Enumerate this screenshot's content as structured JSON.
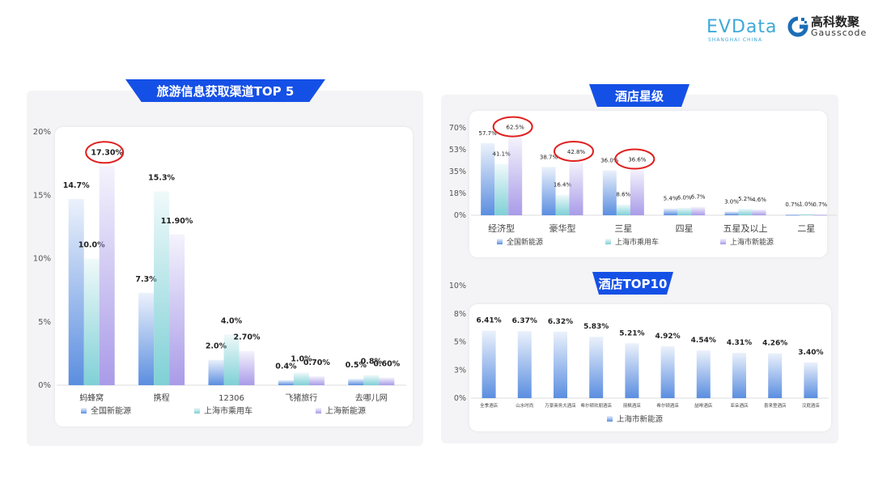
{
  "logos": {
    "evdata": "EVData",
    "evdata_sub": "SHANGHAI CHINA",
    "gauss_cn": "高科数聚",
    "gauss_en": "Gausscode"
  },
  "colors": {
    "banner": "#1550e6",
    "series1": "#5b8ee0",
    "series2": "#7fd0d6",
    "series3": "#a99be8",
    "annotation": "#e02020"
  },
  "chart_data": [
    {
      "type": "bar",
      "title": "旅游信息获取渠道TOP 5",
      "categories": [
        "蚂蜂窝",
        "携程",
        "12306",
        "飞猪旅行",
        "去哪儿网"
      ],
      "series": [
        {
          "name": "全国新能源",
          "values": [
            14.7,
            7.3,
            2.0,
            0.4,
            0.5
          ],
          "labels": [
            "14.7%",
            "7.3%",
            "2.0%",
            "0.4%",
            "0.5%"
          ]
        },
        {
          "name": "上海市乘用车",
          "values": [
            10.0,
            15.3,
            4.0,
            1.0,
            0.8
          ],
          "labels": [
            "10.0%",
            "15.3%",
            "4.0%",
            "1.0%",
            "0.8%"
          ]
        },
        {
          "name": "上海新能源",
          "values": [
            17.3,
            11.9,
            2.7,
            0.7,
            0.6
          ],
          "labels": [
            "17.30%",
            "11.90%",
            "2.70%",
            "0.70%",
            "0.60%"
          ]
        }
      ],
      "yticks": [
        "0%",
        "5%",
        "10%",
        "15%",
        "20%"
      ],
      "ylim": [
        0,
        20
      ],
      "legend": "bottom",
      "highlighted": [
        {
          "series": 2,
          "category": 0
        }
      ]
    },
    {
      "type": "bar",
      "title": "酒店星级",
      "categories": [
        "经济型",
        "豪华型",
        "三星",
        "四星",
        "五星及以上",
        "二星"
      ],
      "series": [
        {
          "name": "全国新能源",
          "values": [
            57.7,
            38.7,
            36.0,
            5.4,
            3.0,
            0.7
          ],
          "labels": [
            "57.7%",
            "38.7%",
            "36.0%",
            "5.4%",
            "3.0%",
            "0.7%"
          ]
        },
        {
          "name": "上海市乘用车",
          "values": [
            41.1,
            16.4,
            8.6,
            6.0,
            5.2,
            1.0
          ],
          "labels": [
            "41.1%",
            "16.4%",
            "8.6%",
            "6.0%",
            "5.2%",
            "1.0%"
          ]
        },
        {
          "name": "上海市新能源",
          "values": [
            62.5,
            42.8,
            36.6,
            6.7,
            4.6,
            0.7
          ],
          "labels": [
            "62.5%",
            "42.8%",
            "36.6%",
            "6.7%",
            "4.6%",
            "0.7%"
          ]
        }
      ],
      "yticks": [
        "0%",
        "18%",
        "35%",
        "53%",
        "70%"
      ],
      "ylim": [
        0,
        70
      ],
      "legend": "bottom",
      "highlighted": [
        {
          "series": 2,
          "category": 0
        },
        {
          "series": 2,
          "category": 1
        },
        {
          "series": 2,
          "category": 2
        }
      ]
    },
    {
      "type": "bar",
      "title": "酒店TOP10",
      "categories": [
        "全季酒店",
        "山水时尚",
        "万豪商务大酒店",
        "希尔顿欢朋酒店",
        "丽枫酒店",
        "希尔顿酒店",
        "喆啡酒店",
        "亚朵酒店",
        "喜来登酒店",
        "汉庭酒店"
      ],
      "series": [
        {
          "name": "上海市新能源",
          "values": [
            6.41,
            6.37,
            6.32,
            5.83,
            5.21,
            4.92,
            4.54,
            4.31,
            4.26,
            3.4
          ],
          "labels": [
            "6.41%",
            "6.37%",
            "6.32%",
            "5.83%",
            "5.21%",
            "4.92%",
            "4.54%",
            "4.31%",
            "4.26%",
            "3.40%"
          ]
        }
      ],
      "yticks": [
        "0%",
        "3%",
        "5%",
        "8%",
        "10%"
      ],
      "ylim": [
        0,
        8
      ],
      "legend": "bottom"
    }
  ]
}
